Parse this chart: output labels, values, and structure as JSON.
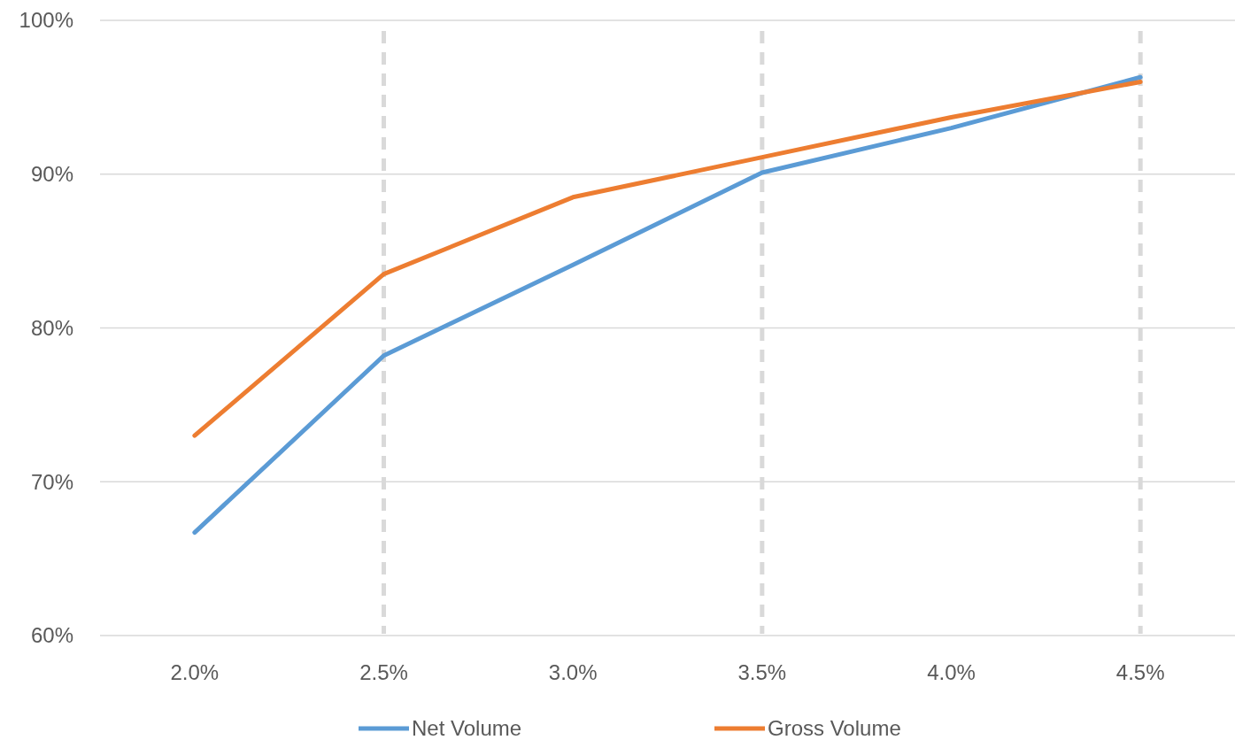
{
  "chart_data": {
    "type": "line",
    "categories": [
      "2.0%",
      "2.5%",
      "3.0%",
      "3.5%",
      "4.0%",
      "4.5%"
    ],
    "series": [
      {
        "name": "Net Volume",
        "color": "#5b9bd5",
        "values": [
          66.7,
          78.2,
          84.1,
          90.1,
          93.0,
          96.3
        ]
      },
      {
        "name": "Gross Volume",
        "color": "#ed7d31",
        "values": [
          73.0,
          83.5,
          88.5,
          91.1,
          93.7,
          96.0
        ]
      }
    ],
    "ylim": [
      60,
      100
    ],
    "yticks": [
      {
        "value": 60,
        "label": "60%"
      },
      {
        "value": 70,
        "label": "70%"
      },
      {
        "value": 80,
        "label": "80%"
      },
      {
        "value": 90,
        "label": "90%"
      },
      {
        "value": 100,
        "label": "100%"
      }
    ],
    "ref_lines": [
      {
        "axis": "x",
        "value": "2.5%",
        "color": "#d9d9d9",
        "line_style": "dashed"
      },
      {
        "axis": "x",
        "value": "3.5%",
        "color": "#d9d9d9",
        "line_style": "dashed"
      },
      {
        "axis": "x",
        "value": "4.5%",
        "color": "#d9d9d9",
        "line_style": "dashed"
      }
    ],
    "grid": "y",
    "legend": "bottom",
    "marker": "none",
    "line_style": "solid"
  }
}
